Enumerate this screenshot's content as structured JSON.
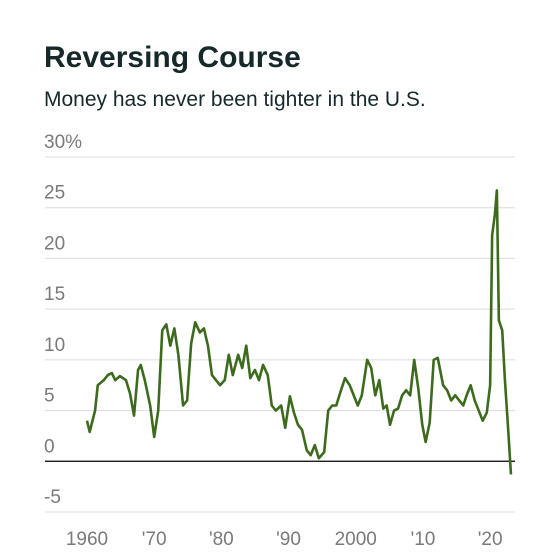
{
  "chart_data": {
    "type": "line",
    "title": "Reversing Course",
    "subtitle": "Money has never been tighter in the U.S.",
    "x": [
      1960,
      1960.4,
      1961.2,
      1961.6,
      1962.5,
      1963.1,
      1963.7,
      1964.2,
      1964.9,
      1965.8,
      1966.4,
      1967.0,
      1967.6,
      1968.0,
      1968.6,
      1969.4,
      1970.0,
      1970.6,
      1971.2,
      1971.8,
      1972.4,
      1973.0,
      1973.6,
      1974.3,
      1974.9,
      1975.5,
      1976.1,
      1976.8,
      1977.4,
      1978.0,
      1978.6,
      1979.2,
      1979.8,
      1980.5,
      1981.1,
      1981.7,
      1982.5,
      1983.1,
      1983.7,
      1984.3,
      1985.0,
      1985.6,
      1986.2,
      1986.9,
      1987.5,
      1988.1,
      1988.9,
      1989.5,
      1990.2,
      1990.8,
      1991.4,
      1992.0,
      1992.7,
      1993.3,
      1993.9,
      1994.5,
      1995.3,
      1995.9,
      1996.5,
      1997.1,
      1997.8,
      1998.4,
      1999.1,
      1999.7,
      2000.3,
      2000.9,
      2001.7,
      2002.3,
      2002.9,
      2003.5,
      2004.1,
      2004.6,
      2005.1,
      2005.7,
      2006.3,
      2006.9,
      2007.5,
      2008.1,
      2008.7,
      2009.3,
      2009.9,
      2010.4,
      2011.0,
      2011.6,
      2012.2,
      2013.0,
      2013.6,
      2014.2,
      2014.8,
      2015.4,
      2016.0,
      2016.5,
      2017.1,
      2017.7,
      2018.3,
      2018.9,
      2019.5,
      2020.0,
      2020.3,
      2020.7,
      2021.0,
      2021.3,
      2021.8,
      2022.2,
      2022.6,
      2023.1
    ],
    "series": [
      {
        "color": "#3d6b1e",
        "values": [
          4.0,
          2.9,
          5.0,
          7.5,
          8.0,
          8.5,
          8.7,
          8.0,
          8.4,
          8.0,
          6.7,
          4.5,
          9.0,
          9.5,
          8.0,
          5.5,
          2.4,
          5.0,
          12.9,
          13.5,
          11.4,
          13.1,
          10.5,
          5.5,
          6.0,
          11.6,
          13.7,
          12.7,
          13.1,
          11.4,
          8.5,
          8.0,
          7.5,
          8.0,
          10.5,
          8.5,
          10.5,
          9.2,
          11.4,
          8.2,
          9.0,
          8.0,
          9.5,
          8.5,
          5.5,
          5.0,
          5.5,
          3.3,
          6.4,
          4.8,
          3.6,
          3.1,
          1.1,
          0.6,
          1.6,
          0.3,
          0.9,
          5.0,
          5.5,
          5.5,
          7.0,
          8.2,
          7.5,
          6.5,
          5.5,
          6.5,
          10.0,
          9.2,
          6.5,
          8.0,
          5.2,
          5.5,
          3.6,
          5.0,
          5.2,
          6.5,
          7.0,
          6.5,
          10.0,
          7.2,
          3.6,
          1.9,
          3.8,
          10.0,
          10.2,
          7.5,
          7.0,
          6.0,
          6.5,
          6.0,
          5.5,
          6.5,
          7.5,
          6.0,
          5.0,
          4.0,
          4.8,
          7.5,
          22.3,
          24.3,
          26.7,
          13.9,
          12.9,
          8.0,
          4.0,
          -1.3
        ]
      }
    ],
    "xlim": [
      1953.75,
      2023.7
    ],
    "xticks": [
      {
        "value": 1960,
        "label": "1960"
      },
      {
        "value": 1970,
        "label": "'70"
      },
      {
        "value": 1980,
        "label": "'80"
      },
      {
        "value": 1990,
        "label": "'90"
      },
      {
        "value": 2000,
        "label": "2000"
      },
      {
        "value": 2010,
        "label": "'10"
      },
      {
        "value": 2020,
        "label": "'20"
      }
    ],
    "ylim": [
      -5,
      30
    ],
    "yticks": [
      {
        "value": 30,
        "label": "30%"
      },
      25,
      20,
      15,
      10,
      5,
      0,
      -5
    ],
    "grid": true
  }
}
